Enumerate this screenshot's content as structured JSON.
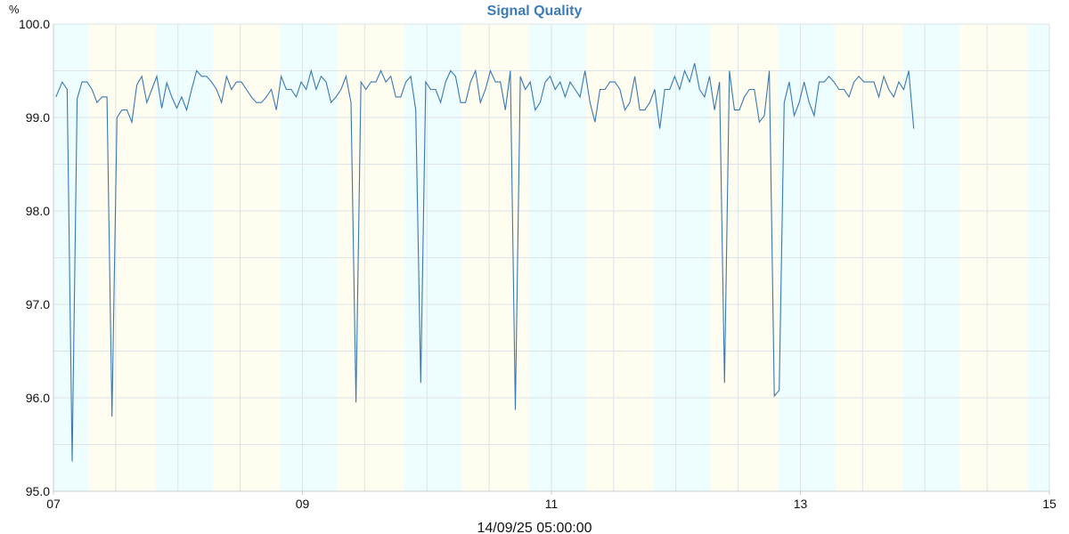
{
  "chart_data": {
    "type": "line",
    "title": "Signal Quality",
    "ylabel": "%",
    "footer": "14/09/25 05:00:00",
    "ylim": [
      95.0,
      100.0
    ],
    "y_ticks": [
      "95.0",
      "96.0",
      "97.0",
      "98.0",
      "99.0",
      "100.0"
    ],
    "xlim": [
      7.0,
      15.0
    ],
    "x_ticks": [
      {
        "value": 7,
        "label": "07"
      },
      {
        "value": 9,
        "label": "09"
      },
      {
        "value": 11,
        "label": "11"
      },
      {
        "value": 13,
        "label": "13"
      },
      {
        "value": 15,
        "label": "15"
      }
    ],
    "grid": true,
    "colors": {
      "line": "#3a78b4",
      "band_cyan": "#eefdfd",
      "band_yellow": "#fefdf0",
      "grid": "#dde3e8",
      "axis": "#c8cdd2"
    },
    "series": [
      {
        "values": [
          [
            7.02,
            99.22
          ],
          [
            7.07,
            99.38
          ],
          [
            7.11,
            99.3
          ],
          [
            7.15,
            95.32
          ],
          [
            7.19,
            99.2
          ],
          [
            7.23,
            99.38
          ],
          [
            7.27,
            99.38
          ],
          [
            7.31,
            99.3
          ],
          [
            7.35,
            99.16
          ],
          [
            7.39,
            99.22
          ],
          [
            7.43,
            99.22
          ],
          [
            7.47,
            95.8
          ],
          [
            7.51,
            99.0
          ],
          [
            7.55,
            99.08
          ],
          [
            7.59,
            99.08
          ],
          [
            7.63,
            98.95
          ],
          [
            7.67,
            99.35
          ],
          [
            7.71,
            99.44
          ],
          [
            7.75,
            99.16
          ],
          [
            7.79,
            99.3
          ],
          [
            7.83,
            99.44
          ],
          [
            7.87,
            99.1
          ],
          [
            7.91,
            99.37
          ],
          [
            7.95,
            99.22
          ],
          [
            7.99,
            99.1
          ],
          [
            8.03,
            99.22
          ],
          [
            8.07,
            99.08
          ],
          [
            8.11,
            99.3
          ],
          [
            8.15,
            99.5
          ],
          [
            8.19,
            99.44
          ],
          [
            8.23,
            99.44
          ],
          [
            8.27,
            99.38
          ],
          [
            8.31,
            99.3
          ],
          [
            8.35,
            99.16
          ],
          [
            8.39,
            99.44
          ],
          [
            8.43,
            99.3
          ],
          [
            8.47,
            99.38
          ],
          [
            8.51,
            99.38
          ],
          [
            8.55,
            99.3
          ],
          [
            8.59,
            99.22
          ],
          [
            8.63,
            99.16
          ],
          [
            8.67,
            99.16
          ],
          [
            8.71,
            99.22
          ],
          [
            8.75,
            99.3
          ],
          [
            8.79,
            99.08
          ],
          [
            8.83,
            99.44
          ],
          [
            8.87,
            99.3
          ],
          [
            8.91,
            99.3
          ],
          [
            8.95,
            99.22
          ],
          [
            8.99,
            99.38
          ],
          [
            9.03,
            99.3
          ],
          [
            9.07,
            99.5
          ],
          [
            9.11,
            99.3
          ],
          [
            9.15,
            99.44
          ],
          [
            9.19,
            99.38
          ],
          [
            9.23,
            99.16
          ],
          [
            9.27,
            99.22
          ],
          [
            9.31,
            99.3
          ],
          [
            9.35,
            99.44
          ],
          [
            9.39,
            99.16
          ],
          [
            9.43,
            95.95
          ],
          [
            9.47,
            99.38
          ],
          [
            9.51,
            99.3
          ],
          [
            9.55,
            99.38
          ],
          [
            9.59,
            99.38
          ],
          [
            9.63,
            99.5
          ],
          [
            9.67,
            99.38
          ],
          [
            9.71,
            99.44
          ],
          [
            9.75,
            99.22
          ],
          [
            9.79,
            99.22
          ],
          [
            9.83,
            99.38
          ],
          [
            9.87,
            99.44
          ],
          [
            9.91,
            99.08
          ],
          [
            9.95,
            96.16
          ],
          [
            9.99,
            99.38
          ],
          [
            10.03,
            99.3
          ],
          [
            10.07,
            99.3
          ],
          [
            10.11,
            99.16
          ],
          [
            10.15,
            99.38
          ],
          [
            10.19,
            99.5
          ],
          [
            10.23,
            99.44
          ],
          [
            10.27,
            99.16
          ],
          [
            10.31,
            99.16
          ],
          [
            10.35,
            99.38
          ],
          [
            10.39,
            99.5
          ],
          [
            10.43,
            99.16
          ],
          [
            10.47,
            99.3
          ],
          [
            10.51,
            99.5
          ],
          [
            10.55,
            99.38
          ],
          [
            10.59,
            99.38
          ],
          [
            10.63,
            99.08
          ],
          [
            10.67,
            99.5
          ],
          [
            10.71,
            95.87
          ],
          [
            10.75,
            99.44
          ],
          [
            10.79,
            99.3
          ],
          [
            10.83,
            99.38
          ],
          [
            10.87,
            99.08
          ],
          [
            10.91,
            99.16
          ],
          [
            10.95,
            99.38
          ],
          [
            10.99,
            99.44
          ],
          [
            11.03,
            99.3
          ],
          [
            11.07,
            99.38
          ],
          [
            11.11,
            99.22
          ],
          [
            11.15,
            99.38
          ],
          [
            11.19,
            99.3
          ],
          [
            11.23,
            99.22
          ],
          [
            11.27,
            99.5
          ],
          [
            11.31,
            99.16
          ],
          [
            11.35,
            98.95
          ],
          [
            11.39,
            99.3
          ],
          [
            11.43,
            99.3
          ],
          [
            11.47,
            99.38
          ],
          [
            11.51,
            99.38
          ],
          [
            11.55,
            99.3
          ],
          [
            11.59,
            99.08
          ],
          [
            11.63,
            99.16
          ],
          [
            11.67,
            99.44
          ],
          [
            11.71,
            99.08
          ],
          [
            11.75,
            99.08
          ],
          [
            11.79,
            99.16
          ],
          [
            11.83,
            99.3
          ],
          [
            11.87,
            98.88
          ],
          [
            11.91,
            99.3
          ],
          [
            11.95,
            99.3
          ],
          [
            11.99,
            99.44
          ],
          [
            12.03,
            99.3
          ],
          [
            12.07,
            99.5
          ],
          [
            12.11,
            99.38
          ],
          [
            12.15,
            99.58
          ],
          [
            12.19,
            99.3
          ],
          [
            12.23,
            99.22
          ],
          [
            12.27,
            99.44
          ],
          [
            12.31,
            99.08
          ],
          [
            12.35,
            99.38
          ],
          [
            12.39,
            96.16
          ],
          [
            12.43,
            99.5
          ],
          [
            12.47,
            99.08
          ],
          [
            12.51,
            99.08
          ],
          [
            12.55,
            99.22
          ],
          [
            12.59,
            99.3
          ],
          [
            12.63,
            99.3
          ],
          [
            12.67,
            98.95
          ],
          [
            12.71,
            99.02
          ],
          [
            12.75,
            99.5
          ],
          [
            12.79,
            96.02
          ],
          [
            12.83,
            96.08
          ],
          [
            12.87,
            99.16
          ],
          [
            12.91,
            99.38
          ],
          [
            12.95,
            99.02
          ],
          [
            12.99,
            99.16
          ],
          [
            13.03,
            99.38
          ],
          [
            13.07,
            99.16
          ],
          [
            13.11,
            99.02
          ],
          [
            13.15,
            99.38
          ],
          [
            13.19,
            99.38
          ],
          [
            13.23,
            99.44
          ],
          [
            13.27,
            99.38
          ],
          [
            13.31,
            99.3
          ],
          [
            13.35,
            99.3
          ],
          [
            13.39,
            99.22
          ],
          [
            13.43,
            99.38
          ],
          [
            13.47,
            99.44
          ],
          [
            13.51,
            99.38
          ],
          [
            13.55,
            99.38
          ],
          [
            13.59,
            99.38
          ],
          [
            13.63,
            99.22
          ],
          [
            13.67,
            99.44
          ],
          [
            13.71,
            99.3
          ],
          [
            13.75,
            99.22
          ],
          [
            13.79,
            99.38
          ],
          [
            13.83,
            99.3
          ],
          [
            13.87,
            99.5
          ],
          [
            13.91,
            98.88
          ]
        ]
      }
    ],
    "bands": [
      {
        "from": 7.0,
        "to": 7.28,
        "tone": "cyan"
      },
      {
        "from": 7.28,
        "to": 7.82,
        "tone": "yellow"
      },
      {
        "from": 7.82,
        "to": 8.28,
        "tone": "cyan"
      },
      {
        "from": 8.28,
        "to": 8.82,
        "tone": "yellow"
      },
      {
        "from": 8.82,
        "to": 9.28,
        "tone": "cyan"
      },
      {
        "from": 9.28,
        "to": 9.82,
        "tone": "yellow"
      },
      {
        "from": 9.82,
        "to": 10.28,
        "tone": "cyan"
      },
      {
        "from": 10.28,
        "to": 10.82,
        "tone": "yellow"
      },
      {
        "from": 10.82,
        "to": 11.28,
        "tone": "cyan"
      },
      {
        "from": 11.28,
        "to": 11.82,
        "tone": "yellow"
      },
      {
        "from": 11.82,
        "to": 12.28,
        "tone": "cyan"
      },
      {
        "from": 12.28,
        "to": 12.82,
        "tone": "yellow"
      },
      {
        "from": 12.82,
        "to": 13.28,
        "tone": "cyan"
      },
      {
        "from": 13.28,
        "to": 13.82,
        "tone": "yellow"
      },
      {
        "from": 13.82,
        "to": 14.28,
        "tone": "cyan"
      },
      {
        "from": 14.28,
        "to": 14.82,
        "tone": "yellow"
      },
      {
        "from": 14.82,
        "to": 15.0,
        "tone": "cyan"
      }
    ]
  }
}
